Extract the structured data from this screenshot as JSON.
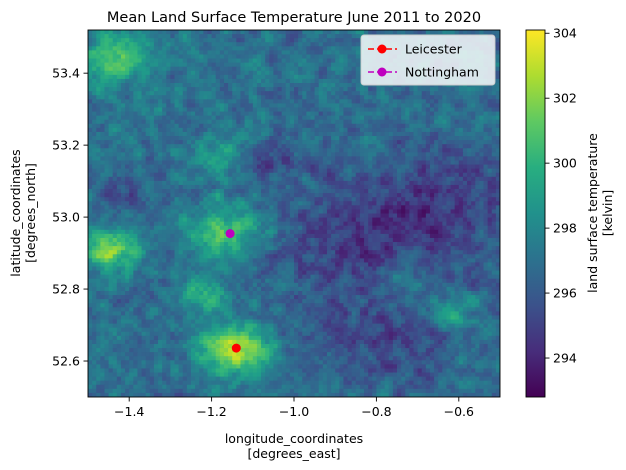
{
  "chart_data": {
    "type": "heatmap",
    "title": "Mean Land Surface Temperature June 2011 to 2020",
    "xlabel_line1": "longitude_coordinates",
    "xlabel_line2": "[degrees_east]",
    "ylabel_line1": "latitude_coordinates",
    "ylabel_line2": "[degrees_north]",
    "colorbar_label_line1": "land surface temperature",
    "colorbar_label_line2": "[kelvin]",
    "colormap": "viridis",
    "xlim": [
      -1.5,
      -0.5
    ],
    "ylim": [
      52.5,
      53.52
    ],
    "clim": [
      292.8,
      304.1
    ],
    "x_ticks": [
      -1.4,
      -1.2,
      -1.0,
      -0.8,
      -0.6
    ],
    "x_tick_labels": [
      "−1.4",
      "−1.2",
      "−1.0",
      "−0.8",
      "−0.6"
    ],
    "y_ticks": [
      52.6,
      52.8,
      53.0,
      53.2,
      53.4
    ],
    "y_tick_labels": [
      "52.6",
      "52.8",
      "53.0",
      "53.2",
      "53.4"
    ],
    "colorbar_ticks": [
      294,
      296,
      298,
      300,
      302,
      304
    ],
    "colorbar_tick_labels": [
      "294",
      "296",
      "298",
      "300",
      "302",
      "304"
    ],
    "baseline_temperature": 297,
    "hotspots": [
      {
        "lon": -1.14,
        "lat": 52.63,
        "radius": 0.06,
        "amplitude": 6.0
      },
      {
        "lon": -1.16,
        "lat": 52.96,
        "radius": 0.07,
        "amplitude": 4.0
      },
      {
        "lon": -1.45,
        "lat": 52.91,
        "radius": 0.05,
        "amplitude": 5.0
      },
      {
        "lon": -1.44,
        "lat": 53.44,
        "radius": 0.07,
        "amplitude": 3.5
      },
      {
        "lon": -1.22,
        "lat": 52.78,
        "radius": 0.04,
        "amplitude": 3.0
      },
      {
        "lon": -1.17,
        "lat": 53.17,
        "radius": 0.05,
        "amplitude": 2.5
      },
      {
        "lon": -0.62,
        "lat": 52.74,
        "radius": 0.04,
        "amplitude": 2.5
      },
      {
        "lon": -0.74,
        "lat": 52.82,
        "radius": 0.04,
        "amplitude": 1.8
      }
    ],
    "coldspots": [
      {
        "lon": -0.85,
        "lat": 52.93,
        "radius": 0.16,
        "amplitude": -2.2
      },
      {
        "lon": -0.6,
        "lat": 53.05,
        "radius": 0.14,
        "amplitude": -1.8
      },
      {
        "lon": -0.8,
        "lat": 52.64,
        "radius": 0.12,
        "amplitude": -1.6
      },
      {
        "lon": -1.07,
        "lat": 53.16,
        "radius": 0.05,
        "amplitude": -1.8
      },
      {
        "lon": -1.4,
        "lat": 53.08,
        "radius": 0.06,
        "amplitude": -1.2
      }
    ],
    "series": [
      {
        "name": "Leicester",
        "x": -1.14,
        "y": 52.636,
        "color": "#ff0000"
      },
      {
        "name": "Nottingham",
        "x": -1.155,
        "y": 52.954,
        "color": "#bf00bf"
      }
    ],
    "legend_position": "upper right"
  }
}
